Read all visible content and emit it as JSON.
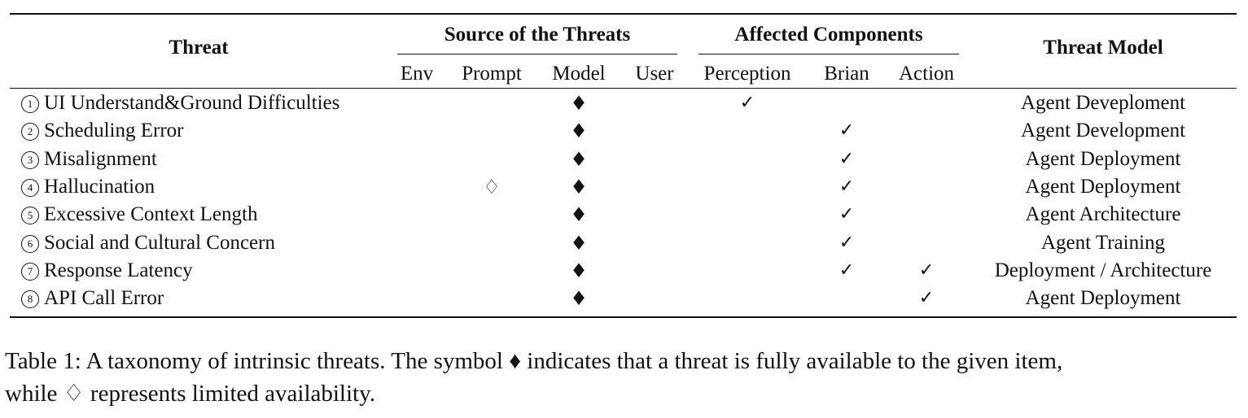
{
  "table": {
    "header": {
      "threat": "Threat",
      "source_group": "Source of the Threats",
      "components_group": "Affected Components",
      "threat_model": "Threat Model",
      "sub_columns": [
        "Env",
        "Prompt",
        "Model",
        "User",
        "Perception",
        "Brian",
        "Action"
      ]
    },
    "full_symbol": "♦",
    "limited_symbol": "♢",
    "check_symbol": "✓",
    "rows": [
      {
        "num": "1",
        "name": "UI Understand&Ground Difficulties",
        "prompt": "",
        "model": "full",
        "perception": true,
        "brain": false,
        "action": false,
        "threat_model": "Agent Deveploment"
      },
      {
        "num": "2",
        "name": "Scheduling Error",
        "prompt": "",
        "model": "full",
        "perception": false,
        "brain": true,
        "action": false,
        "threat_model": "Agent Development"
      },
      {
        "num": "3",
        "name": "Misalignment",
        "prompt": "",
        "model": "full",
        "perception": false,
        "brain": true,
        "action": false,
        "threat_model": "Agent Deployment"
      },
      {
        "num": "4",
        "name": "Hallucination",
        "prompt": "limited",
        "model": "full",
        "perception": false,
        "brain": true,
        "action": false,
        "threat_model": "Agent Deployment"
      },
      {
        "num": "5",
        "name": "Excessive Context Length",
        "prompt": "",
        "model": "full",
        "perception": false,
        "brain": true,
        "action": false,
        "threat_model": "Agent Architecture"
      },
      {
        "num": "6",
        "name": "Social and Cultural Concern",
        "prompt": "",
        "model": "full",
        "perception": false,
        "brain": true,
        "action": false,
        "threat_model": "Agent Training"
      },
      {
        "num": "7",
        "name": "Response Latency",
        "prompt": "",
        "model": "full",
        "perception": false,
        "brain": true,
        "action": true,
        "threat_model": "Deployment / Architecture"
      },
      {
        "num": "8",
        "name": "API Call Error",
        "prompt": "",
        "model": "full",
        "perception": false,
        "brain": false,
        "action": true,
        "threat_model": "Agent Deployment"
      }
    ]
  },
  "caption": {
    "line1": "Table 1: A taxonomy of intrinsic threats. The symbol ♦ indicates that a threat is fully available to the given item,",
    "line2": "while ♢ represents limited availability."
  }
}
